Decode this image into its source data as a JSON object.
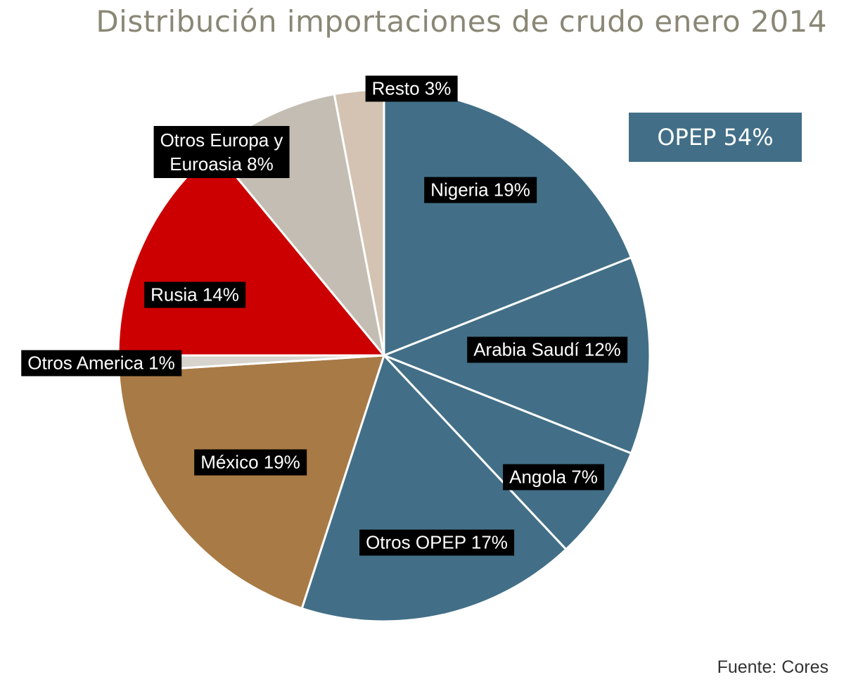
{
  "chart_data": {
    "type": "pie",
    "title": "Distribución importaciones de crudo enero 2014",
    "source": "Fuente: Cores",
    "slices": [
      {
        "label": "Nigeria 19%",
        "value": 19,
        "color": "#426f87"
      },
      {
        "label": "Arabia Saudí 12%",
        "value": 12,
        "color": "#426f87"
      },
      {
        "label": "Angola 7%",
        "value": 7,
        "color": "#426f87"
      },
      {
        "label": "Otros OPEP 17%",
        "value": 17,
        "color": "#426f87"
      },
      {
        "label": "México 19%",
        "value": 19,
        "color": "#a87a45"
      },
      {
        "label": "Otros America 1%",
        "value": 1,
        "color": "#d7d4ce"
      },
      {
        "label": "Rusia 14%",
        "value": 14,
        "color": "#cc0000"
      },
      {
        "label": "Otros Europa y Euroasia 8%",
        "value": 8,
        "color": "#c4bdb3"
      },
      {
        "label": "Resto 3%",
        "value": 3,
        "color": "#d4c3b2"
      }
    ],
    "group_annotation": {
      "label": "OPEP 54%",
      "value": 54,
      "color": "#426f87"
    }
  }
}
